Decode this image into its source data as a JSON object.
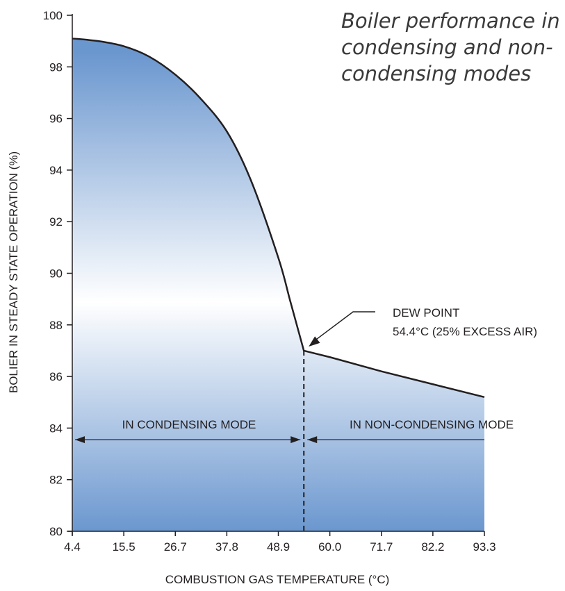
{
  "chart_data": {
    "type": "area",
    "title_lines": [
      "Boiler performance in",
      "condensing and non-",
      "condensing modes"
    ],
    "xlabel": "COMBUSTION GAS TEMPERATURE (°C)",
    "ylabel": "BOLIER IN STEADY STATE OPERATION (%)",
    "x_ticks": [
      "4.4",
      "15.5",
      "26.7",
      "37.8",
      "48.9",
      "60.0",
      "71.7",
      "82.2",
      "93.3"
    ],
    "y_ticks": [
      "80",
      "82",
      "84",
      "86",
      "88",
      "90",
      "92",
      "94",
      "96",
      "98",
      "100"
    ],
    "ylim": [
      80,
      100
    ],
    "x": [
      4.4,
      10.0,
      15.5,
      21.0,
      26.7,
      32.0,
      37.8,
      43.0,
      48.9,
      51.5,
      54.4,
      60.0,
      71.7,
      82.2,
      93.3
    ],
    "values": [
      99.1,
      99.0,
      98.8,
      98.4,
      97.7,
      96.8,
      95.5,
      93.6,
      90.6,
      88.9,
      87.0,
      86.75,
      86.2,
      85.7,
      85.2
    ],
    "dew_point": {
      "x": 54.4,
      "y": 87.0,
      "label_lines": [
        "DEW POINT",
        "54.4°C (25% EXCESS AIR)"
      ]
    },
    "regions": [
      {
        "label": "IN CONDENSING MODE",
        "x_from": 4.4,
        "x_to": 54.4,
        "y": 83.55
      },
      {
        "label": "IN NON-CONDENSING MODE",
        "x_from": 54.4,
        "x_to": 93.3,
        "y": 83.55
      }
    ],
    "colors": {
      "fill_edge": "#6b97cf",
      "fill_center": "#ffffff",
      "line": "#231f20"
    }
  }
}
